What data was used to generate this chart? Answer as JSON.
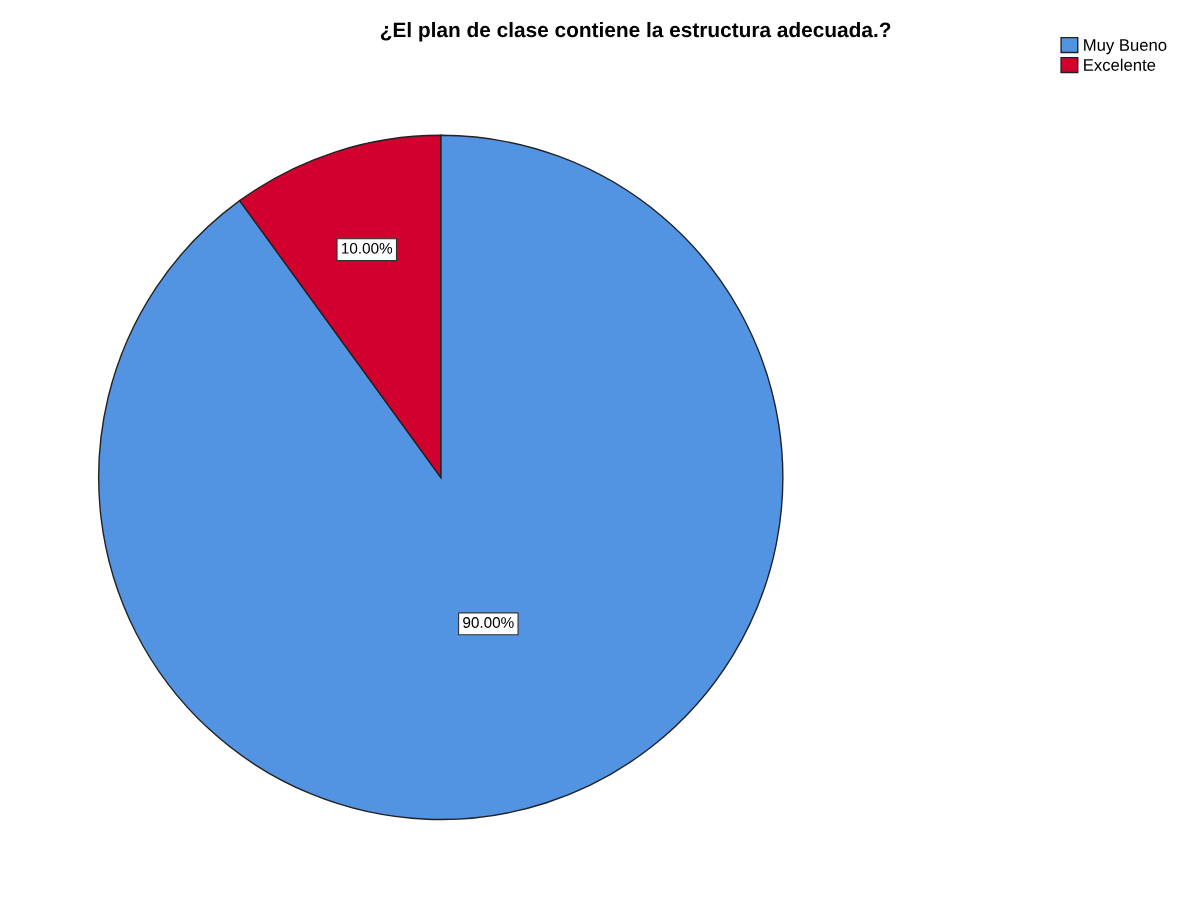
{
  "chart_data": {
    "type": "pie",
    "title": "¿El plan de clase contiene la estructura adecuada.?",
    "categories": [
      "Muy Bueno",
      "Excelente"
    ],
    "values": [
      90,
      10
    ],
    "colors": [
      "#5294e2",
      "#d2002f"
    ],
    "value_labels": [
      "90.00%",
      "10.00%"
    ],
    "legend": "top right"
  }
}
